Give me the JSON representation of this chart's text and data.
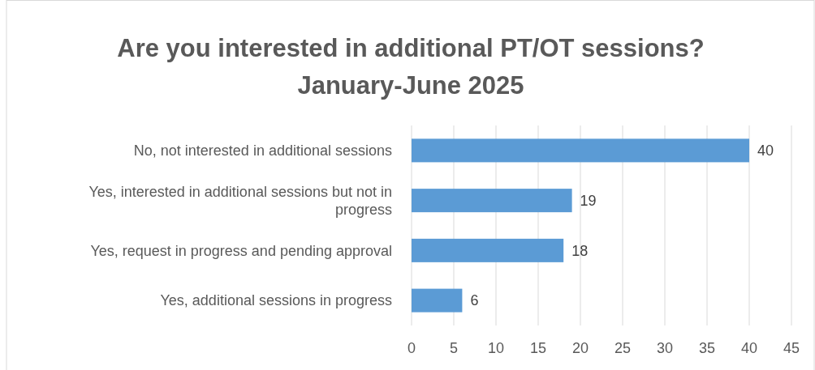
{
  "chart_data": {
    "type": "bar",
    "orientation": "horizontal",
    "title": "Are you interested in additional PT/OT sessions? January-June 2025",
    "categories": [
      "No, not interested in additional sessions",
      "Yes, interested in additional sessions but not in progress",
      "Yes, request in progress and pending approval",
      "Yes, additional sessions in progress"
    ],
    "values": [
      40,
      19,
      18,
      6
    ],
    "color": "#5b9bd5",
    "xlim": [
      0,
      45
    ],
    "xticks": [
      0,
      5,
      10,
      15,
      20,
      25,
      30,
      35,
      40,
      45
    ],
    "grid": "x",
    "data_labels": true
  }
}
